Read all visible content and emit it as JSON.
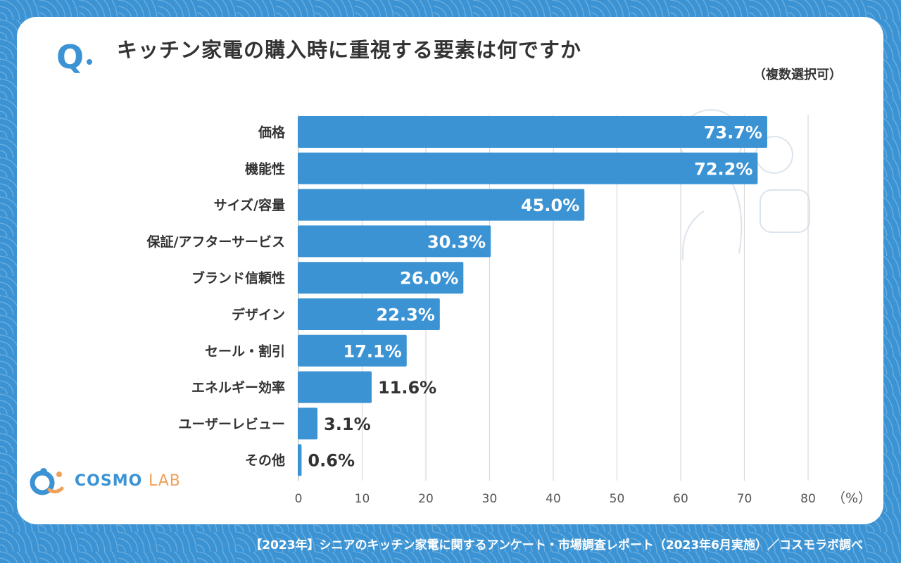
{
  "title": "キッチン家電の購入時に重視する要素は何ですか",
  "q_mark": "Q",
  "note": "（複数選択可）",
  "unit_label": "（%）",
  "footer": "【2023年】シニアのキッチン家電に関するアンケート・市場調査レポート（2023年6月実施）／コスモラボ調べ",
  "logo": {
    "main": "COSMO",
    "sub": "LAB"
  },
  "colors": {
    "bar": "#3b93d4",
    "background": "#3b93d4",
    "text": "#333333",
    "grid": "#d9d9d9"
  },
  "chart_data": {
    "type": "bar",
    "orientation": "horizontal",
    "categories": [
      "価格",
      "機能性",
      "サイズ/容量",
      "保証/アフターサービス",
      "ブランド信頼性",
      "デザイン",
      "セール・割引",
      "エネルギー効率",
      "ユーザーレビュー",
      "その他"
    ],
    "values": [
      73.7,
      72.2,
      45.0,
      30.3,
      26.0,
      22.3,
      17.1,
      11.6,
      3.1,
      0.6
    ],
    "value_labels": [
      "73.7%",
      "72.2%",
      "45.0%",
      "30.3%",
      "26.0%",
      "22.3%",
      "17.1%",
      "11.6%",
      "3.1%",
      "0.6%"
    ],
    "xlim": [
      0,
      80
    ],
    "xticks": [
      0,
      10,
      20,
      30,
      40,
      50,
      60,
      70,
      80
    ],
    "grid": true
  }
}
